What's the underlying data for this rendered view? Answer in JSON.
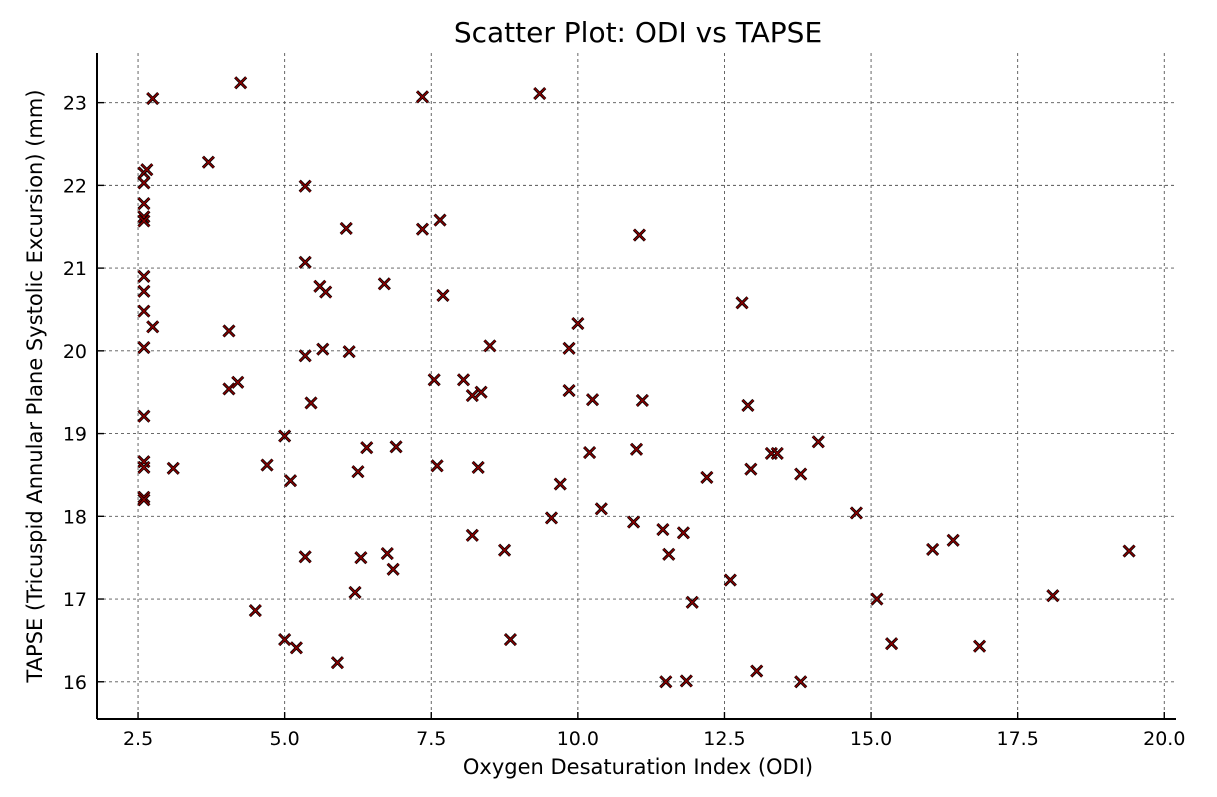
{
  "chart_data": {
    "type": "scatter",
    "title": "Scatter Plot: ODI vs TAPSE",
    "xlabel": "Oxygen Desaturation Index (ODI)",
    "ylabel": "TAPSE (Tricuspid Annular Plane Systolic Excursion) (mm)",
    "xlim": [
      1.8,
      20.2
    ],
    "ylim": [
      15.55,
      23.6
    ],
    "xticks": [
      2.5,
      5.0,
      7.5,
      10.0,
      12.5,
      15.0,
      17.5,
      20.0
    ],
    "xtick_labels": [
      "2.5",
      "5.0",
      "7.5",
      "10.0",
      "12.5",
      "15.0",
      "17.5",
      "20.0"
    ],
    "yticks": [
      16,
      17,
      18,
      19,
      20,
      21,
      22,
      23
    ],
    "ytick_labels": [
      "16",
      "17",
      "18",
      "19",
      "20",
      "21",
      "22",
      "23"
    ],
    "grid": true,
    "marker": "x",
    "marker_color": "#8b0000",
    "marker_edge_color": "#000000",
    "points": [
      {
        "x": 2.6,
        "y": 22.15
      },
      {
        "x": 2.6,
        "y": 22.03
      },
      {
        "x": 2.6,
        "y": 21.78
      },
      {
        "x": 2.6,
        "y": 21.62
      },
      {
        "x": 2.6,
        "y": 21.57
      },
      {
        "x": 2.6,
        "y": 20.9
      },
      {
        "x": 2.6,
        "y": 20.72
      },
      {
        "x": 2.6,
        "y": 20.48
      },
      {
        "x": 2.6,
        "y": 20.04
      },
      {
        "x": 2.6,
        "y": 19.21
      },
      {
        "x": 2.6,
        "y": 18.66
      },
      {
        "x": 2.6,
        "y": 18.59
      },
      {
        "x": 2.6,
        "y": 18.23
      },
      {
        "x": 2.6,
        "y": 18.2
      },
      {
        "x": 2.65,
        "y": 22.19
      },
      {
        "x": 2.75,
        "y": 23.05
      },
      {
        "x": 2.75,
        "y": 20.29
      },
      {
        "x": 3.1,
        "y": 18.58
      },
      {
        "x": 3.7,
        "y": 22.28
      },
      {
        "x": 4.05,
        "y": 20.24
      },
      {
        "x": 4.05,
        "y": 19.54
      },
      {
        "x": 4.2,
        "y": 19.62
      },
      {
        "x": 4.25,
        "y": 23.24
      },
      {
        "x": 4.5,
        "y": 16.86
      },
      {
        "x": 4.7,
        "y": 18.62
      },
      {
        "x": 5.0,
        "y": 18.97
      },
      {
        "x": 5.0,
        "y": 16.51
      },
      {
        "x": 5.1,
        "y": 18.43
      },
      {
        "x": 5.2,
        "y": 16.41
      },
      {
        "x": 5.35,
        "y": 21.99
      },
      {
        "x": 5.35,
        "y": 21.07
      },
      {
        "x": 5.35,
        "y": 19.94
      },
      {
        "x": 5.35,
        "y": 17.51
      },
      {
        "x": 5.45,
        "y": 19.37
      },
      {
        "x": 5.6,
        "y": 20.78
      },
      {
        "x": 5.65,
        "y": 20.02
      },
      {
        "x": 5.7,
        "y": 20.71
      },
      {
        "x": 5.9,
        "y": 16.23
      },
      {
        "x": 6.05,
        "y": 21.48
      },
      {
        "x": 6.1,
        "y": 19.99
      },
      {
        "x": 6.2,
        "y": 17.08
      },
      {
        "x": 6.25,
        "y": 18.54
      },
      {
        "x": 6.3,
        "y": 17.5
      },
      {
        "x": 6.4,
        "y": 18.83
      },
      {
        "x": 6.7,
        "y": 20.81
      },
      {
        "x": 6.75,
        "y": 17.55
      },
      {
        "x": 6.85,
        "y": 17.36
      },
      {
        "x": 6.9,
        "y": 18.84
      },
      {
        "x": 7.35,
        "y": 21.47
      },
      {
        "x": 7.35,
        "y": 23.07
      },
      {
        "x": 7.55,
        "y": 19.65
      },
      {
        "x": 7.6,
        "y": 18.61
      },
      {
        "x": 7.65,
        "y": 21.58
      },
      {
        "x": 7.7,
        "y": 20.67
      },
      {
        "x": 8.05,
        "y": 19.65
      },
      {
        "x": 8.2,
        "y": 19.46
      },
      {
        "x": 8.2,
        "y": 17.77
      },
      {
        "x": 8.3,
        "y": 18.59
      },
      {
        "x": 8.35,
        "y": 19.5
      },
      {
        "x": 8.5,
        "y": 20.06
      },
      {
        "x": 8.75,
        "y": 17.59
      },
      {
        "x": 8.85,
        "y": 16.51
      },
      {
        "x": 9.35,
        "y": 23.11
      },
      {
        "x": 9.55,
        "y": 17.98
      },
      {
        "x": 9.7,
        "y": 18.39
      },
      {
        "x": 9.85,
        "y": 20.03
      },
      {
        "x": 9.85,
        "y": 19.52
      },
      {
        "x": 10.0,
        "y": 20.33
      },
      {
        "x": 10.2,
        "y": 18.77
      },
      {
        "x": 10.25,
        "y": 19.41
      },
      {
        "x": 10.4,
        "y": 18.09
      },
      {
        "x": 10.95,
        "y": 17.93
      },
      {
        "x": 11.0,
        "y": 18.81
      },
      {
        "x": 11.05,
        "y": 21.4
      },
      {
        "x": 11.1,
        "y": 19.4
      },
      {
        "x": 11.45,
        "y": 17.84
      },
      {
        "x": 11.5,
        "y": 16.0
      },
      {
        "x": 11.55,
        "y": 17.54
      },
      {
        "x": 11.8,
        "y": 17.8
      },
      {
        "x": 11.85,
        "y": 16.01
      },
      {
        "x": 11.95,
        "y": 16.96
      },
      {
        "x": 12.2,
        "y": 18.47
      },
      {
        "x": 12.6,
        "y": 17.23
      },
      {
        "x": 12.8,
        "y": 20.58
      },
      {
        "x": 12.9,
        "y": 19.34
      },
      {
        "x": 12.95,
        "y": 18.57
      },
      {
        "x": 13.05,
        "y": 16.13
      },
      {
        "x": 13.3,
        "y": 18.76
      },
      {
        "x": 13.4,
        "y": 18.76
      },
      {
        "x": 13.8,
        "y": 16.0
      },
      {
        "x": 13.8,
        "y": 18.51
      },
      {
        "x": 14.1,
        "y": 18.9
      },
      {
        "x": 14.75,
        "y": 18.04
      },
      {
        "x": 15.1,
        "y": 17.0
      },
      {
        "x": 15.35,
        "y": 16.46
      },
      {
        "x": 16.05,
        "y": 17.6
      },
      {
        "x": 16.4,
        "y": 17.71
      },
      {
        "x": 16.85,
        "y": 16.43
      },
      {
        "x": 18.1,
        "y": 17.04
      },
      {
        "x": 19.4,
        "y": 17.58
      }
    ]
  }
}
